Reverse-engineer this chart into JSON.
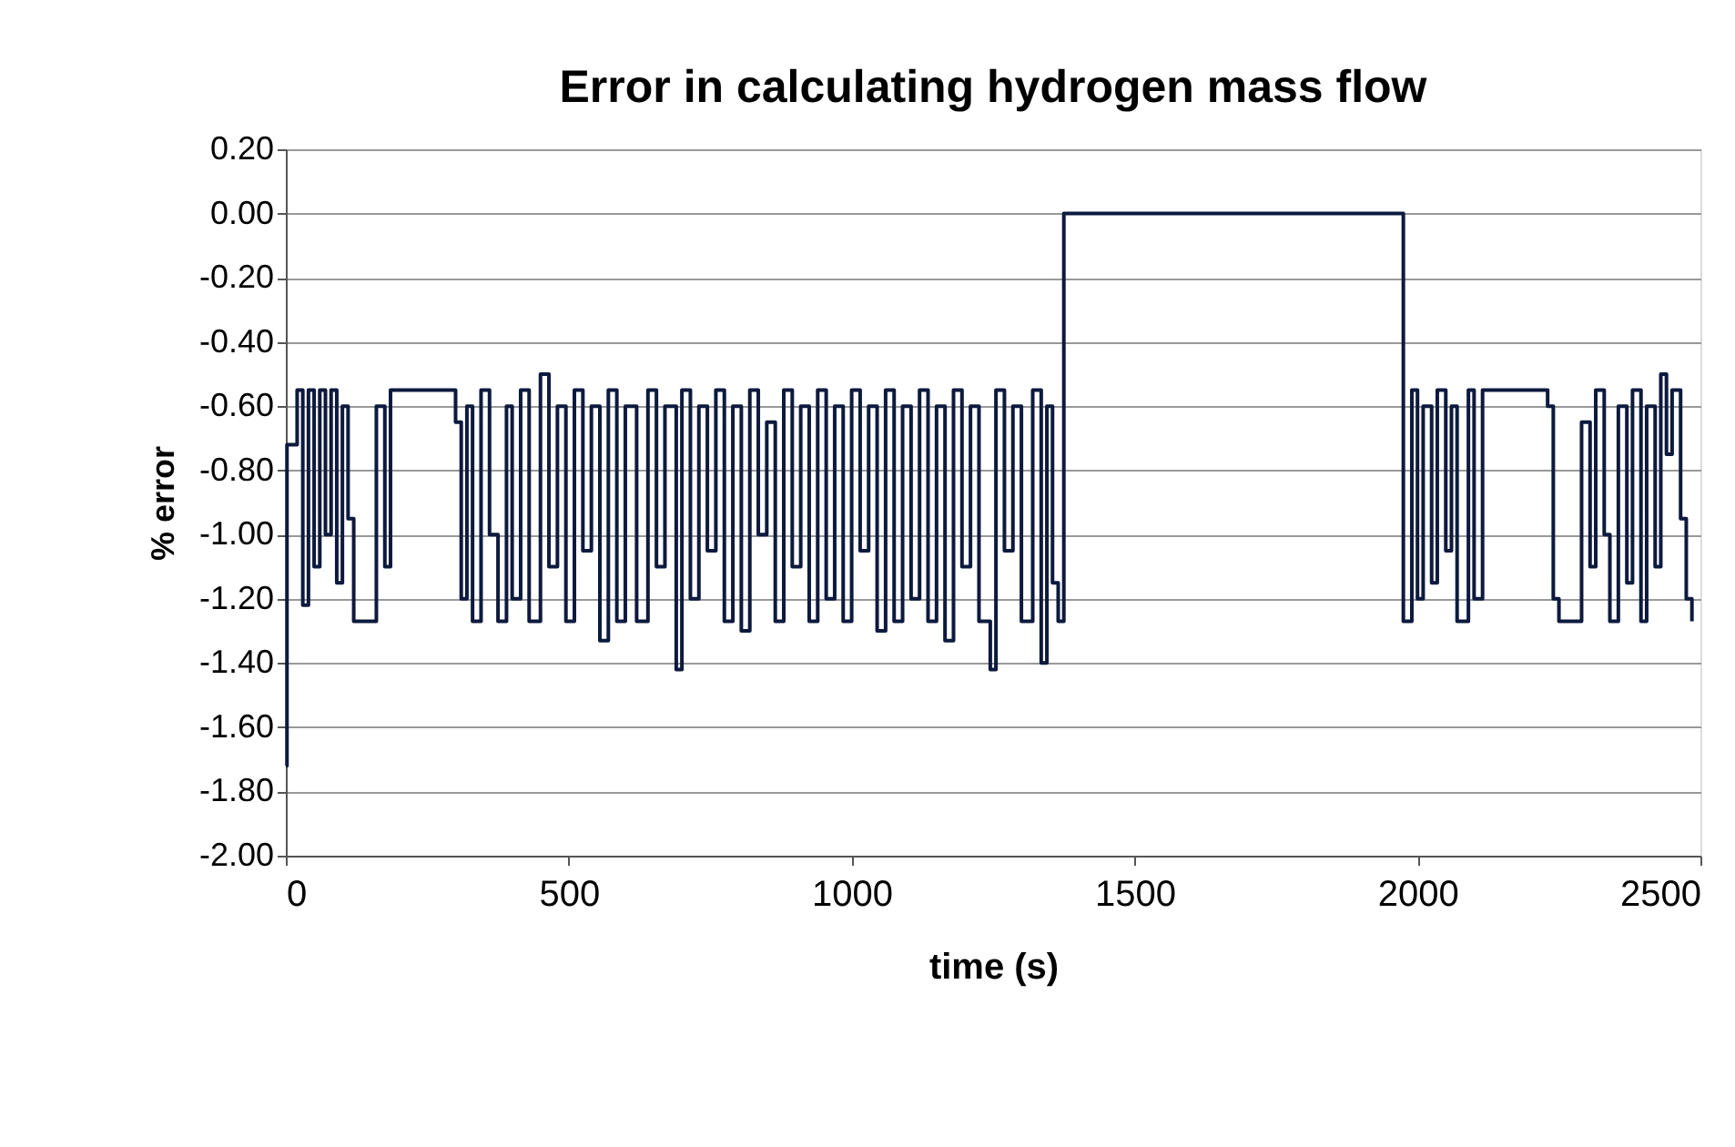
{
  "chart_data": {
    "type": "step",
    "title": "Error in calculating hydrogen mass flow",
    "xlabel": "time (s)",
    "ylabel": "% error",
    "xlim": [
      0,
      2500
    ],
    "xticks": [
      0,
      500,
      1000,
      1500,
      2000,
      2500
    ],
    "ylim": [
      -2.0,
      0.2
    ],
    "yticks": [
      {
        "value": 0.2,
        "label": "0.20"
      },
      {
        "value": 0,
        "label": "0.00"
      },
      {
        "value": -0.2,
        "label": "-0.20"
      },
      {
        "value": -0.4,
        "label": "-0.40"
      },
      {
        "value": -0.6,
        "label": "-0.60"
      },
      {
        "value": -0.8,
        "label": "-0.80"
      },
      {
        "value": -1.0,
        "label": "-1.00"
      },
      {
        "value": -1.2,
        "label": "-1.20"
      },
      {
        "value": -1.4,
        "label": "-1.40"
      },
      {
        "value": -1.6,
        "label": "-1.60"
      },
      {
        "value": -1.8,
        "label": "-1.80"
      },
      {
        "value": -2.0,
        "label": "-2.00"
      }
    ],
    "grid": "y",
    "marker": "none",
    "line_style": "solid",
    "series": [
      {
        "color": "#0d1a3e",
        "x": [
          0,
          2,
          20,
          30,
          40,
          50,
          60,
          70,
          80,
          90,
          100,
          110,
          120,
          160,
          175,
          185,
          300,
          310,
          320,
          330,
          345,
          360,
          375,
          390,
          400,
          415,
          430,
          450,
          465,
          480,
          495,
          510,
          525,
          540,
          555,
          570,
          585,
          600,
          620,
          640,
          655,
          670,
          690,
          700,
          715,
          730,
          745,
          760,
          775,
          790,
          805,
          820,
          835,
          850,
          865,
          880,
          895,
          910,
          925,
          940,
          955,
          970,
          985,
          1000,
          1015,
          1030,
          1045,
          1060,
          1075,
          1090,
          1105,
          1120,
          1135,
          1150,
          1165,
          1180,
          1195,
          1210,
          1225,
          1245,
          1255,
          1270,
          1285,
          1300,
          1320,
          1335,
          1345,
          1355,
          1365,
          1375,
          1975,
          1990,
          2000,
          2010,
          2025,
          2035,
          2050,
          2060,
          2070,
          2090,
          2100,
          2115,
          2230,
          2240,
          2250,
          2290,
          2305,
          2315,
          2330,
          2340,
          2355,
          2370,
          2380,
          2395,
          2405,
          2420,
          2430,
          2440,
          2450,
          2465,
          2475,
          2485
        ],
        "values": [
          -1.72,
          -0.72,
          -0.55,
          -1.22,
          -0.55,
          -1.1,
          -0.55,
          -1.0,
          -0.55,
          -1.15,
          -0.6,
          -0.95,
          -1.27,
          -0.6,
          -1.1,
          -0.55,
          -0.65,
          -1.2,
          -0.6,
          -1.27,
          -0.55,
          -1.0,
          -1.27,
          -0.6,
          -1.2,
          -0.55,
          -1.27,
          -0.5,
          -1.1,
          -0.6,
          -1.27,
          -0.55,
          -1.05,
          -0.6,
          -1.33,
          -0.55,
          -1.27,
          -0.6,
          -1.27,
          -0.55,
          -1.1,
          -0.6,
          -1.42,
          -0.55,
          -1.2,
          -0.6,
          -1.05,
          -0.55,
          -1.27,
          -0.6,
          -1.3,
          -0.55,
          -1.0,
          -0.65,
          -1.27,
          -0.55,
          -1.1,
          -0.6,
          -1.27,
          -0.55,
          -1.2,
          -0.6,
          -1.27,
          -0.55,
          -1.05,
          -0.6,
          -1.3,
          -0.55,
          -1.27,
          -0.6,
          -1.2,
          -0.55,
          -1.27,
          -0.6,
          -1.33,
          -0.55,
          -1.1,
          -0.6,
          -1.27,
          -1.42,
          -0.55,
          -1.05,
          -0.6,
          -1.27,
          -0.55,
          -1.4,
          -0.6,
          -1.15,
          -1.27,
          0.0,
          -1.27,
          -0.55,
          -1.2,
          -0.6,
          -1.15,
          -0.55,
          -1.05,
          -0.6,
          -1.27,
          -0.55,
          -1.2,
          -0.55,
          -0.6,
          -1.2,
          -1.27,
          -0.65,
          -1.1,
          -0.55,
          -1.0,
          -1.27,
          -0.6,
          -1.15,
          -0.55,
          -1.27,
          -0.6,
          -1.1,
          -0.5,
          -0.75,
          -0.55,
          -0.95,
          -1.2,
          -1.27
        ]
      }
    ]
  }
}
